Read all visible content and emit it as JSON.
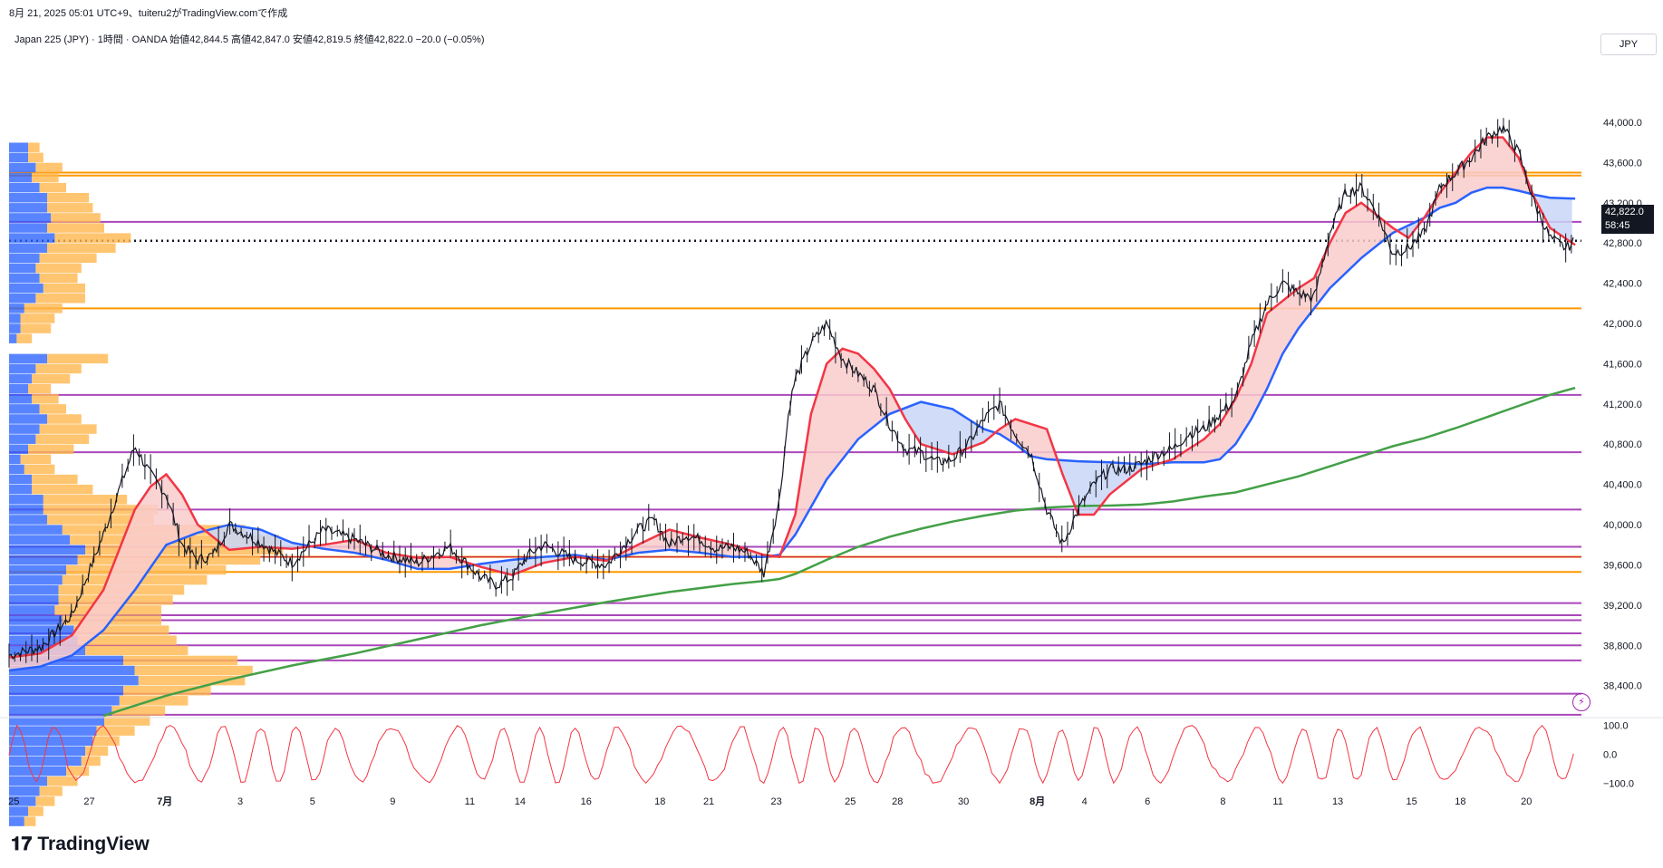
{
  "header": {
    "snapshot_line": "8月 21, 2025 05:01 UTC+9、tuiteru2がTradingView.comで作成",
    "ohlc_line": "Japan 225 (JPY) · 1時間 · OANDA  始値42,844.5  高値42,847.0  安値42,819.5  終値42,822.0  −20.0 (−0.05%)"
  },
  "currency_button": "JPY",
  "last_price": {
    "value": "42,822.0",
    "countdown": "58:45"
  },
  "logo_text": "TradingView",
  "colors": {
    "candle": "#131722",
    "ma_fast": "#f23645",
    "ma_mid": "#2962ff",
    "ma_slow": "#43a047",
    "hline_purple": "#9c27b0",
    "hline_orange": "#ff9800",
    "cloud_red": "#f9cbcb",
    "cloud_blue": "#c9d6f7",
    "vp_blue": "#2962ff",
    "vp_orange": "#ffb74d",
    "oscillator": "#f23645"
  },
  "chart_data": {
    "type": "line",
    "symbol": "Japan 225 (JPY)",
    "timeframe": "1時間",
    "x_tick_labels": [
      "25",
      "27",
      "7月",
      "3",
      "5",
      "9",
      "11",
      "14",
      "16",
      "18",
      "21",
      "23",
      "25",
      "28",
      "30",
      "8月",
      "4",
      "6",
      "8",
      "11",
      "13",
      "15",
      "18",
      "20"
    ],
    "y_tick_labels": [
      "44,000.0",
      "43,600.0",
      "43,200.0",
      "42,800.0",
      "42,400.0",
      "42,000.0",
      "41,600.0",
      "41,200.0",
      "40,800.0",
      "40,400.0",
      "40,000.0",
      "39,600.0",
      "39,200.0",
      "38,800.0",
      "38,400.0"
    ],
    "y_ticks": [
      44000,
      43600,
      43200,
      42800,
      42400,
      42000,
      41600,
      41200,
      40800,
      40400,
      40000,
      39600,
      39200,
      38800,
      38400
    ],
    "ylim": [
      38100,
      44450
    ],
    "x_index_range": [
      0,
      100
    ],
    "x_tick_positions": [
      0.3,
      5.1,
      9.9,
      14.7,
      19.3,
      24.4,
      29.3,
      32.5,
      36.7,
      41.4,
      44.5,
      48.8,
      53.5,
      56.5,
      60.7,
      65.4,
      68.4,
      72.4,
      77.2,
      80.7,
      84.5,
      89.2,
      92.3,
      96.5
    ],
    "price_series": {
      "name": "Japan 225",
      "x": [
        0,
        2,
        4,
        6,
        7,
        8,
        9,
        10,
        11,
        12,
        13,
        14,
        16,
        18,
        20,
        22,
        24,
        26,
        28,
        30,
        31,
        32,
        33,
        34,
        36,
        38,
        40,
        41,
        42,
        43,
        44,
        45,
        46,
        47,
        48,
        49,
        49.6,
        50,
        51,
        52,
        53,
        54,
        55,
        56,
        57,
        58,
        59,
        60,
        61,
        62,
        63,
        64,
        65,
        66,
        67,
        68,
        69,
        70,
        71,
        72,
        73,
        74,
        75,
        76,
        77,
        78,
        79,
        80,
        81,
        82,
        83,
        84,
        85,
        86,
        87,
        88,
        89,
        90,
        91,
        92,
        93,
        94,
        95,
        96,
        97,
        98,
        99,
        99.6
      ],
      "y": [
        38700,
        38780,
        39100,
        39900,
        40350,
        40780,
        40500,
        40300,
        39800,
        39650,
        39700,
        40000,
        39820,
        39620,
        39950,
        39850,
        39700,
        39620,
        39780,
        39480,
        39400,
        39480,
        39700,
        39800,
        39650,
        39600,
        39950,
        40050,
        39800,
        39900,
        39850,
        39760,
        39780,
        39720,
        39520,
        40250,
        41150,
        41450,
        41800,
        42000,
        41650,
        41500,
        41350,
        41000,
        40750,
        40720,
        40620,
        40650,
        40800,
        41050,
        41200,
        40900,
        40700,
        40150,
        39800,
        40150,
        40400,
        40550,
        40550,
        40600,
        40700,
        40750,
        40900,
        40950,
        41100,
        41250,
        41800,
        42200,
        42400,
        42300,
        42250,
        42900,
        43300,
        43350,
        43100,
        42700,
        42750,
        42900,
        43350,
        43500,
        43650,
        43850,
        43950,
        43700,
        43200,
        42850,
        42750,
        42822
      ]
    },
    "series": [
      {
        "name": "",
        "role": "fast_ma",
        "x": [
          0,
          2,
          4,
          6,
          8,
          9,
          10,
          11,
          12,
          14,
          16,
          18,
          20,
          22,
          24,
          26,
          28,
          30,
          32,
          34,
          36,
          38,
          40,
          42,
          44,
          46,
          48,
          49,
          50,
          51,
          52,
          53,
          54,
          55,
          56,
          57,
          58,
          60,
          62,
          63,
          64,
          66,
          67,
          68,
          69,
          70,
          72,
          74,
          76,
          77,
          78,
          79,
          80,
          82,
          83,
          84,
          85,
          86,
          88,
          89,
          90,
          91,
          92,
          93,
          94,
          95,
          96,
          97,
          98,
          99.6
        ],
        "y": [
          38680,
          38720,
          38900,
          39350,
          40150,
          40380,
          40500,
          40300,
          40000,
          39750,
          39780,
          39760,
          39800,
          39850,
          39720,
          39670,
          39680,
          39580,
          39500,
          39620,
          39680,
          39640,
          39800,
          39950,
          39870,
          39800,
          39700,
          39680,
          40100,
          41100,
          41600,
          41750,
          41700,
          41550,
          41350,
          41050,
          40800,
          40700,
          40820,
          40950,
          41050,
          40950,
          40500,
          40100,
          40100,
          40300,
          40550,
          40650,
          40850,
          41000,
          41250,
          41600,
          42100,
          42350,
          42450,
          42800,
          43100,
          43200,
          42950,
          42850,
          43050,
          43300,
          43500,
          43700,
          43850,
          43850,
          43650,
          43250,
          42950,
          42780
        ]
      },
      {
        "name": "",
        "role": "mid_ma",
        "x": [
          0,
          2,
          4,
          6,
          8,
          10,
          12,
          14,
          16,
          18,
          20,
          22,
          24,
          26,
          28,
          30,
          32,
          34,
          36,
          38,
          40,
          42,
          44,
          46,
          48,
          49,
          50,
          52,
          54,
          56,
          58,
          60,
          61,
          62,
          63,
          64,
          65,
          66,
          67,
          68,
          70,
          72,
          74,
          76,
          77,
          78,
          79,
          80,
          81,
          82,
          84,
          86,
          88,
          90,
          91,
          92,
          93,
          94,
          95,
          96,
          97,
          98,
          99.6
        ],
        "y": [
          38550,
          38590,
          38700,
          38950,
          39350,
          39800,
          39920,
          40000,
          39950,
          39820,
          39760,
          39720,
          39650,
          39560,
          39560,
          39610,
          39650,
          39680,
          39700,
          39650,
          39720,
          39750,
          39720,
          39680,
          39680,
          39700,
          39900,
          40450,
          40850,
          41100,
          41220,
          41150,
          41050,
          40950,
          40900,
          40800,
          40680,
          40650,
          40640,
          40630,
          40620,
          40600,
          40620,
          40620,
          40650,
          40800,
          41050,
          41350,
          41700,
          41950,
          42350,
          42650,
          42900,
          43050,
          43150,
          43200,
          43300,
          43350,
          43350,
          43320,
          43280,
          43250,
          43240
        ]
      },
      {
        "name": "",
        "role": "slow_ma",
        "x": [
          6,
          10,
          14,
          18,
          22,
          26,
          30,
          34,
          38,
          42,
          46,
          48,
          49,
          50,
          52,
          54,
          56,
          58,
          60,
          62,
          64,
          66,
          68,
          70,
          72,
          74,
          76,
          78,
          80,
          82,
          84,
          86,
          88,
          90,
          92,
          94,
          96,
          98,
          99.6
        ],
        "y": [
          38100,
          38300,
          38460,
          38600,
          38720,
          38860,
          39000,
          39120,
          39230,
          39330,
          39410,
          39440,
          39460,
          39510,
          39650,
          39780,
          39880,
          39960,
          40030,
          40090,
          40140,
          40170,
          40185,
          40190,
          40200,
          40230,
          40280,
          40320,
          40400,
          40480,
          40580,
          40680,
          40780,
          40860,
          40960,
          41070,
          41180,
          41290,
          41360
        ]
      }
    ],
    "horizontal_levels": {
      "purple": [
        43010,
        41290,
        40720,
        40150,
        39780,
        39220,
        39100,
        39050,
        38920,
        38800,
        38650,
        38320,
        38110
      ],
      "orange": [
        43470,
        43500,
        42150,
        39530,
        39680
      ],
      "red": [
        39680
      ],
      "dotted_last": 42822
    },
    "volume_profile": {
      "price_start": 43750,
      "price_step": 100,
      "blue": [
        5,
        5,
        7,
        6,
        8,
        10,
        10,
        11,
        10,
        12,
        10,
        8,
        7,
        8,
        9,
        7,
        4,
        3,
        3,
        2,
        0,
        10,
        7,
        6,
        5,
        6,
        8,
        10,
        8,
        7,
        5,
        3,
        4,
        6,
        6,
        9,
        9,
        10,
        14,
        16,
        20,
        18,
        15,
        14,
        13,
        13,
        12,
        14,
        17,
        18,
        20,
        30,
        33,
        34,
        30,
        29,
        27,
        25,
        23,
        22,
        20,
        19,
        15,
        10,
        8,
        7,
        5,
        4
      ],
      "orange": [
        3,
        4,
        7,
        7,
        7,
        11,
        12,
        13,
        15,
        20,
        18,
        15,
        12,
        10,
        11,
        13,
        10,
        9,
        8,
        4,
        0,
        16,
        12,
        10,
        6,
        7,
        7,
        9,
        15,
        14,
        12,
        8,
        8,
        12,
        16,
        22,
        30,
        28,
        48,
        55,
        52,
        48,
        42,
        38,
        33,
        30,
        28,
        26,
        25,
        26,
        27,
        30,
        31,
        28,
        23,
        18,
        14,
        12,
        10,
        7,
        6,
        5,
        6,
        8,
        6,
        5,
        4,
        3
      ]
    },
    "oscillator": {
      "y_tick_labels": [
        "100.0",
        "0.0",
        "−100.0"
      ],
      "y_ticks": [
        100,
        0,
        -100
      ],
      "ylim": [
        -118,
        118
      ]
    }
  }
}
